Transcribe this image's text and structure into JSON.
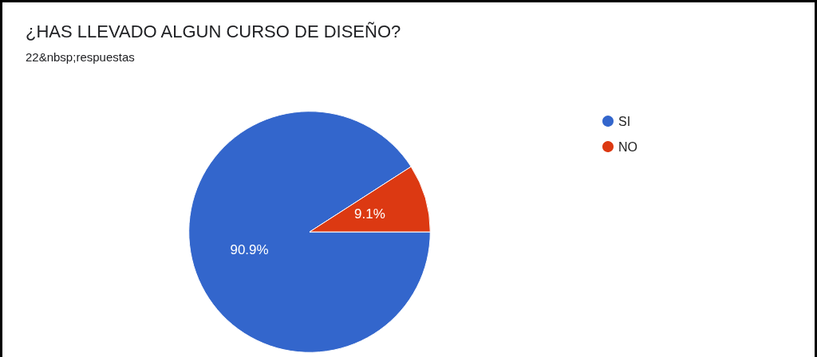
{
  "chart_data": {
    "type": "pie",
    "title": "¿HAS LLEVADO ALGUN CURSO DE DISEÑO?",
    "subtitle": "22&nbsp;respuestas",
    "categories": [
      "SI",
      "NO"
    ],
    "values": [
      90.9,
      9.1
    ],
    "colors": [
      "#3366cc",
      "#dc3912"
    ],
    "value_labels": [
      "90.9%",
      "9.1%"
    ],
    "legend": "top right"
  }
}
